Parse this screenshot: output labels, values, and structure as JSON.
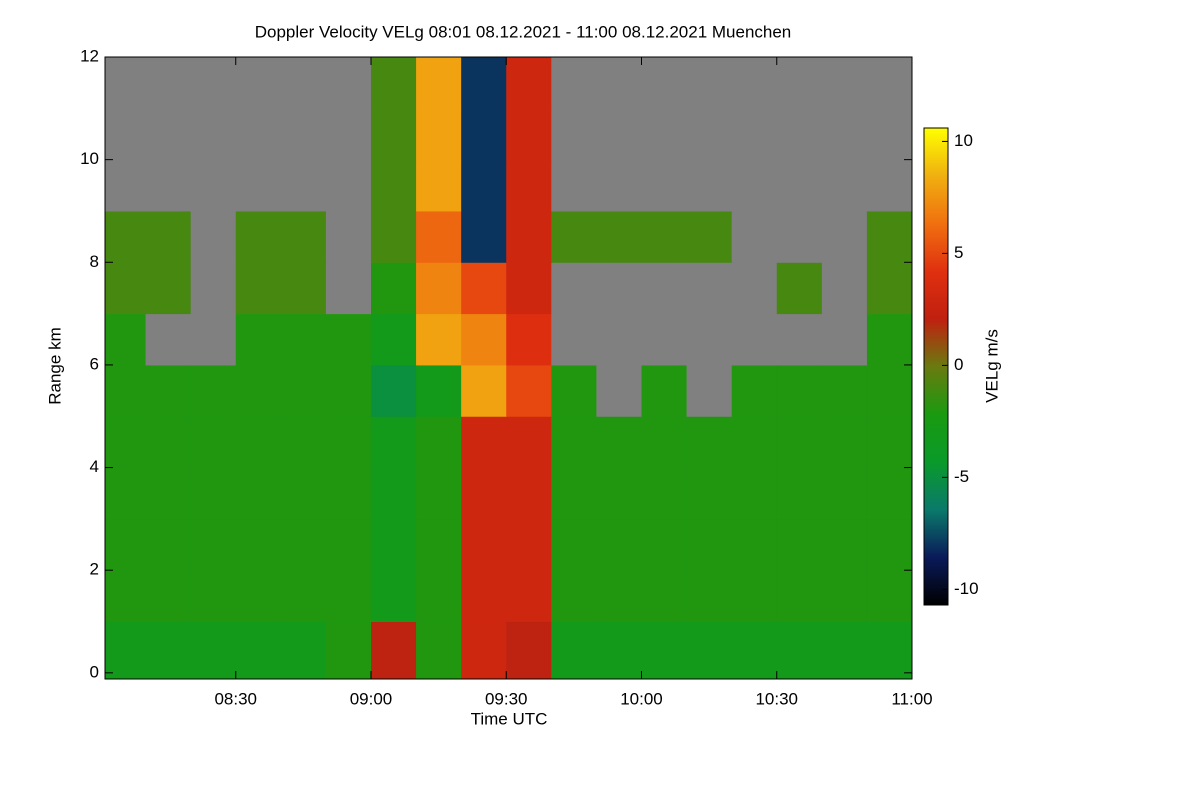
{
  "chart_data": {
    "type": "heatmap",
    "title": "Doppler Velocity VELg   08:01 08.12.2021 - 11:00 08.12.2021 Muenchen",
    "xlabel": "Time UTC",
    "ylabel": "Range km",
    "colorbar_label": "VELg m/s",
    "xlim": [
      481,
      660
    ],
    "xticks": [
      {
        "value": 510,
        "label": "08:30"
      },
      {
        "value": 540,
        "label": "09:00"
      },
      {
        "value": 570,
        "label": "09:30"
      },
      {
        "value": 600,
        "label": "10:00"
      },
      {
        "value": 630,
        "label": "10:30"
      },
      {
        "value": 660,
        "label": "11:00"
      }
    ],
    "ylim": [
      -0.12,
      12
    ],
    "yticks": [
      0,
      2,
      4,
      6,
      8,
      10,
      12
    ],
    "clim": [
      -10.7,
      10.6
    ],
    "cticks": [
      -10,
      -5,
      0,
      5,
      10
    ],
    "xbins": [
      481,
      490,
      500,
      510,
      520,
      530,
      540,
      550,
      560,
      570,
      580,
      590,
      600,
      610,
      620,
      630,
      640,
      650,
      660
    ],
    "ybins": [
      -0.12,
      1,
      2,
      3,
      4,
      5,
      6,
      7,
      8,
      9,
      10,
      11,
      12
    ],
    "colorscale": [
      "#000000",
      "#0a1a5a",
      "#0a7a6a",
      "#0a9a2a",
      "#1a9a10",
      "#6a7a10",
      "#c02010",
      "#e03010",
      "#f07010",
      "#f0b010",
      "#ffff00"
    ],
    "nan_color": "#808080",
    "z": [
      [
        -3,
        -3,
        -3,
        -3,
        -3,
        -2,
        2,
        -2,
        3,
        2,
        -3,
        -3,
        -3,
        -3,
        -3,
        -3,
        -3,
        -3
      ],
      [
        -2,
        -2,
        -2,
        -2,
        -2,
        -2,
        -3,
        -2,
        3,
        3,
        -2,
        -2,
        -2,
        -2,
        -2,
        -2,
        -2,
        -2
      ],
      [
        -2,
        -2,
        -2,
        -2,
        -2,
        -2,
        -3,
        -2,
        3,
        3,
        -2,
        -2,
        -2,
        -2,
        -2,
        -2,
        -2,
        -2
      ],
      [
        -2,
        -2,
        -2,
        -2,
        -2,
        -2,
        -3,
        -2,
        3,
        3,
        -2,
        -2,
        -2,
        -2,
        -2,
        -2,
        -2,
        -2
      ],
      [
        -2,
        -2,
        -2,
        -2,
        -2,
        -2,
        -3,
        -2,
        3,
        3,
        -2,
        -2,
        -2,
        -2,
        -2,
        -2,
        -2,
        -2
      ],
      [
        -2,
        -2,
        -2,
        -2,
        -2,
        -2,
        -5,
        -3,
        8,
        5,
        -2,
        null,
        -2,
        null,
        -2,
        -2,
        -2,
        -2
      ],
      [
        -2,
        null,
        null,
        -2,
        -2,
        -2,
        -3,
        8,
        7,
        4,
        null,
        null,
        null,
        null,
        null,
        null,
        null,
        -2
      ],
      [
        -1,
        -1,
        null,
        -1,
        -1,
        null,
        -2,
        7,
        5,
        3,
        null,
        null,
        null,
        null,
        null,
        -1,
        null,
        -1
      ],
      [
        -1,
        -1,
        null,
        -1,
        -1,
        null,
        -1,
        6,
        -8,
        3,
        -1,
        -1,
        -1,
        -1,
        null,
        null,
        null,
        -1
      ],
      [
        null,
        null,
        null,
        null,
        null,
        null,
        -1,
        8,
        -8,
        3,
        null,
        null,
        null,
        null,
        null,
        null,
        null,
        null
      ],
      [
        null,
        null,
        null,
        null,
        null,
        null,
        -1,
        8,
        -8,
        3,
        null,
        null,
        null,
        null,
        null,
        null,
        null,
        null
      ],
      [
        null,
        null,
        null,
        null,
        null,
        null,
        -1,
        8,
        -8,
        3,
        null,
        null,
        null,
        null,
        null,
        null,
        null,
        null
      ]
    ]
  }
}
